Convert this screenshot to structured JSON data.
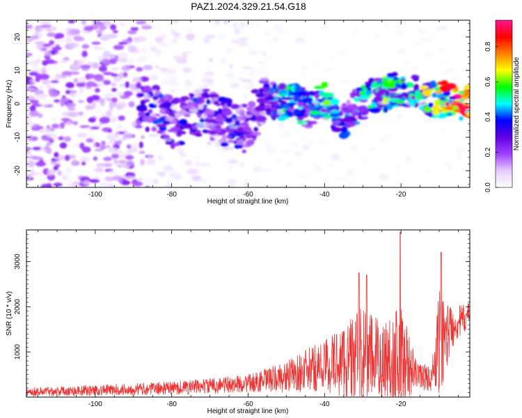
{
  "title": "PAZ1.2024.329.21.54.G18",
  "chart_data": [
    {
      "type": "heatmap",
      "xlabel": "Height of straight line (km)",
      "ylabel": "Frequency (Hz)",
      "xlim": [
        -118,
        -2
      ],
      "ylim": [
        -25,
        25
      ],
      "x_ticks": [
        -100,
        -80,
        -60,
        -40,
        -20
      ],
      "y_ticks": [
        -20,
        -10,
        0,
        10,
        20
      ],
      "colorbar": {
        "label": "Normalized spectral amplitude",
        "range": [
          0,
          0.95
        ],
        "ticks": [
          0.0,
          0.2,
          0.4,
          0.6,
          0.8
        ],
        "colors": [
          "#ffffff",
          "#e6ccff",
          "#a040ff",
          "#6000e0",
          "#0000ff",
          "#00ffff",
          "#00ff00",
          "#ffff00",
          "#ff8000",
          "#ff0000",
          "#ff1493"
        ]
      },
      "ridge": [
        {
          "x": -88,
          "y": -1,
          "v": 0.35
        },
        {
          "x": -84,
          "y": -0.5,
          "v": 0.4
        },
        {
          "x": -80,
          "y": -6,
          "v": 0.3
        },
        {
          "x": -76,
          "y": -4,
          "v": 0.35
        },
        {
          "x": -72,
          "y": -2,
          "v": 0.4
        },
        {
          "x": -68,
          "y": -5,
          "v": 0.3
        },
        {
          "x": -64,
          "y": -6,
          "v": 0.4
        },
        {
          "x": -60,
          "y": -8,
          "v": 0.3
        },
        {
          "x": -56,
          "y": 3,
          "v": 0.3
        },
        {
          "x": -52,
          "y": 0,
          "v": 0.5
        },
        {
          "x": -48,
          "y": 1,
          "v": 0.55
        },
        {
          "x": -44,
          "y": -2,
          "v": 0.45
        },
        {
          "x": -40,
          "y": 2,
          "v": 0.6
        },
        {
          "x": -36,
          "y": -6,
          "v": 0.4
        },
        {
          "x": -32,
          "y": -1,
          "v": 0.45
        },
        {
          "x": -28,
          "y": 2.5,
          "v": 0.55
        },
        {
          "x": -24,
          "y": 3,
          "v": 0.6
        },
        {
          "x": -20,
          "y": 5,
          "v": 0.55
        },
        {
          "x": -16,
          "y": 3,
          "v": 0.6
        },
        {
          "x": -12,
          "y": 1.5,
          "v": 0.7
        },
        {
          "x": -8,
          "y": 1.5,
          "v": 0.85
        },
        {
          "x": -4,
          "y": 0.5,
          "v": 0.9
        }
      ]
    },
    {
      "type": "line",
      "xlabel": "Height of straight line (km)",
      "ylabel": "SNR (10 * v/v)",
      "xlim": [
        -118,
        -2
      ],
      "ylim": [
        0,
        3700
      ],
      "x_ticks": [
        -100,
        -80,
        -60,
        -40,
        -20
      ],
      "y_ticks": [
        1000,
        2000,
        3000
      ],
      "line_color": "#ee3333",
      "envelope": [
        {
          "x": -118,
          "base": 120,
          "amp": 100
        },
        {
          "x": -100,
          "base": 150,
          "amp": 120
        },
        {
          "x": -80,
          "base": 200,
          "amp": 150
        },
        {
          "x": -60,
          "base": 300,
          "amp": 200
        },
        {
          "x": -50,
          "base": 450,
          "amp": 350
        },
        {
          "x": -40,
          "base": 700,
          "amp": 600
        },
        {
          "x": -30,
          "base": 900,
          "amp": 1100
        },
        {
          "x": -25,
          "base": 800,
          "amp": 900
        },
        {
          "x": -20,
          "base": 900,
          "amp": 1200
        },
        {
          "x": -16,
          "base": 500,
          "amp": 300
        },
        {
          "x": -12,
          "base": 400,
          "amp": 300
        },
        {
          "x": -10,
          "base": 1200,
          "amp": 1200
        },
        {
          "x": -6,
          "base": 1600,
          "amp": 400
        },
        {
          "x": -2,
          "base": 1800,
          "amp": 300
        }
      ],
      "peaks": [
        {
          "x": -31,
          "y": 2750
        },
        {
          "x": -29,
          "y": 2700
        },
        {
          "x": -20.2,
          "y": 3650
        },
        {
          "x": -9.5,
          "y": 3200
        },
        {
          "x": -11,
          "y": 250
        }
      ]
    }
  ]
}
